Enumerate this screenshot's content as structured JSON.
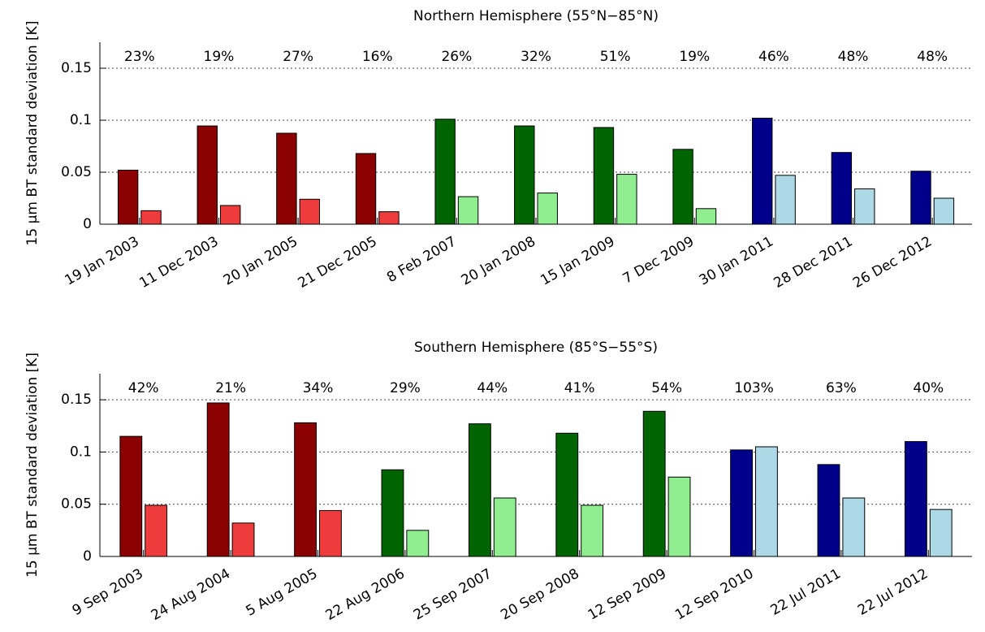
{
  "chart_data": [
    {
      "type": "bar",
      "title": "Northern Hemisphere (55°N−85°N)",
      "ylabel": "15 µm BT standard deviation [K]",
      "categories": [
        "19 Jan 2003",
        "11 Dec 2003",
        "20 Jan 2005",
        "21 Dec 2005",
        "8 Feb 2007",
        "20 Jan 2008",
        "15 Jan 2009",
        "7 Dec 2009",
        "30 Jan 2011",
        "28 Dec 2011",
        "26 Dec 2012"
      ],
      "annotations": [
        "23%",
        "19%",
        "27%",
        "16%",
        "26%",
        "32%",
        "51%",
        "19%",
        "46%",
        "48%",
        "48%"
      ],
      "series": [
        {
          "values": [
            0.052,
            0.0945,
            0.0875,
            0.068,
            0.101,
            0.0945,
            0.093,
            0.072,
            0.102,
            0.069,
            0.051
          ],
          "colors": [
            "#8b0000",
            "#8b0000",
            "#8b0000",
            "#8b0000",
            "#006400",
            "#006400",
            "#006400",
            "#006400",
            "#00008b",
            "#00008b",
            "#00008b"
          ]
        },
        {
          "values": [
            0.013,
            0.018,
            0.024,
            0.012,
            0.0265,
            0.03,
            0.048,
            0.015,
            0.047,
            0.034,
            0.025
          ],
          "colors": [
            "#ee3b3b",
            "#ee3b3b",
            "#ee3b3b",
            "#ee3b3b",
            "#90ee90",
            "#90ee90",
            "#90ee90",
            "#90ee90",
            "#add8e6",
            "#add8e6",
            "#add8e6"
          ]
        }
      ],
      "ylim": [
        0,
        0.175
      ],
      "yticks": [
        0,
        0.05,
        0.1,
        0.15
      ],
      "grid": true
    },
    {
      "type": "bar",
      "title": "Southern Hemisphere (85°S−55°S)",
      "ylabel": "15 µm BT standard deviation [K]",
      "categories": [
        "9 Sep 2003",
        "24 Aug 2004",
        "5 Aug 2005",
        "22 Aug 2006",
        "25 Sep 2007",
        "20 Sep 2008",
        "12 Sep 2009",
        "12 Sep 2010",
        "22 Jul 2011",
        "22 Jul 2012"
      ],
      "annotations": [
        "42%",
        "21%",
        "34%",
        "29%",
        "44%",
        "41%",
        "54%",
        "103%",
        "63%",
        "40%"
      ],
      "series": [
        {
          "values": [
            0.115,
            0.147,
            0.128,
            0.083,
            0.127,
            0.118,
            0.139,
            0.102,
            0.088,
            0.11
          ],
          "colors": [
            "#8b0000",
            "#8b0000",
            "#8b0000",
            "#006400",
            "#006400",
            "#006400",
            "#006400",
            "#00008b",
            "#00008b",
            "#00008b"
          ]
        },
        {
          "values": [
            0.049,
            0.032,
            0.044,
            0.025,
            0.056,
            0.049,
            0.076,
            0.105,
            0.056,
            0.045
          ],
          "colors": [
            "#ee3b3b",
            "#ee3b3b",
            "#ee3b3b",
            "#90ee90",
            "#90ee90",
            "#90ee90",
            "#90ee90",
            "#add8e6",
            "#add8e6",
            "#add8e6"
          ]
        }
      ],
      "ylim": [
        0,
        0.175
      ],
      "yticks": [
        0,
        0.05,
        0.1,
        0.15
      ],
      "grid": true
    }
  ]
}
